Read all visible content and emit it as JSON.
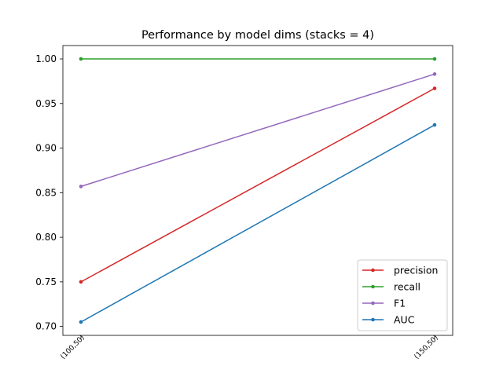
{
  "chart_data": {
    "type": "line",
    "title": "Performance by model dims (stacks = 4)",
    "xlabel": "",
    "ylabel": "",
    "categories": [
      "(100,50)",
      "(150,50)"
    ],
    "ylim": [
      0.69,
      1.015
    ],
    "yticks": [
      0.7,
      0.75,
      0.8,
      0.85,
      0.9,
      0.95,
      1.0
    ],
    "ytick_labels": [
      "0.70",
      "0.75",
      "0.80",
      "0.85",
      "0.90",
      "0.95",
      "1.00"
    ],
    "grid": false,
    "legend_position": "bottom-right",
    "series": [
      {
        "name": "precision",
        "color": "#d62728",
        "values": [
          0.75,
          0.967
        ]
      },
      {
        "name": "recall",
        "color": "#2ca02c",
        "values": [
          1.0,
          1.0
        ]
      },
      {
        "name": "F1",
        "color": "#9467bd",
        "values": [
          0.857,
          0.983
        ]
      },
      {
        "name": "AUC",
        "color": "#1f77b4",
        "values": [
          0.705,
          0.926
        ]
      }
    ]
  }
}
